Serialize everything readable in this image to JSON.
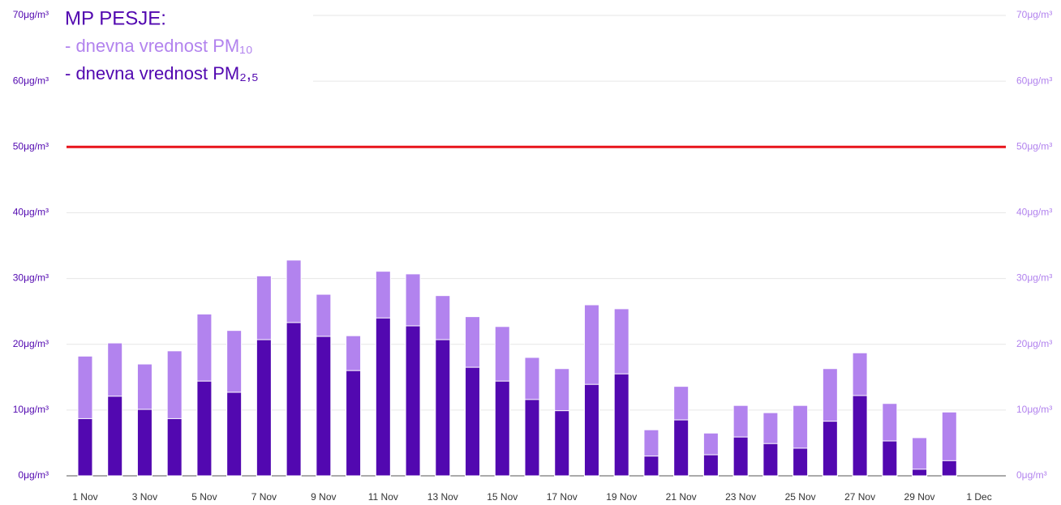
{
  "chart_data": {
    "type": "bar",
    "overlap": true,
    "title": "MP PESJE:",
    "categories": [
      "1 Nov",
      null,
      "3 Nov",
      null,
      "5 Nov",
      null,
      "7 Nov",
      null,
      "9 Nov",
      null,
      "11 Nov",
      null,
      "13 Nov",
      null,
      "15 Nov",
      null,
      "17 Nov",
      null,
      "19 Nov",
      null,
      "21 Nov",
      null,
      "23 Nov",
      null,
      "25 Nov",
      null,
      "27 Nov",
      null,
      "29 Nov",
      null,
      "1 Dec"
    ],
    "series": [
      {
        "name": "- dnevna vrednost PM₁₀",
        "color": "#b283ee",
        "values": [
          18.2,
          20.2,
          17.0,
          19.0,
          24.6,
          22.1,
          30.4,
          32.8,
          27.6,
          21.3,
          31.1,
          30.7,
          27.4,
          24.2,
          22.7,
          18.0,
          16.3,
          26.0,
          25.4,
          7.0,
          13.6,
          6.5,
          10.7,
          9.6,
          10.7,
          16.3,
          18.7,
          11.0,
          5.8,
          9.7,
          null
        ]
      },
      {
        "name": "- dnevna vrednost PM₂,₅",
        "color": "#5208b0",
        "values": [
          8.7,
          12.1,
          10.1,
          8.7,
          14.4,
          12.7,
          20.7,
          23.3,
          21.2,
          16.0,
          24.0,
          22.8,
          20.7,
          16.5,
          14.4,
          11.6,
          9.9,
          13.9,
          15.5,
          3.0,
          8.5,
          3.2,
          5.9,
          4.9,
          4.2,
          8.3,
          12.2,
          5.3,
          1.0,
          2.3,
          null
        ]
      }
    ],
    "ylim": [
      0,
      70
    ],
    "yticks": [
      {
        "value": 0,
        "label": "0μg/m³"
      },
      {
        "value": 10,
        "label": "10μg/m³"
      },
      {
        "value": 20,
        "label": "20μg/m³"
      },
      {
        "value": 30,
        "label": "30μg/m³"
      },
      {
        "value": 40,
        "label": "40μg/m³"
      },
      {
        "value": 50,
        "label": "50μg/m³"
      },
      {
        "value": 60,
        "label": "60μg/m³"
      },
      {
        "value": 70,
        "label": "70μg/m³"
      }
    ],
    "y2lim": [
      0,
      70
    ],
    "y2ticks": [
      {
        "value": 0,
        "label": "0μg/m³"
      },
      {
        "value": 10,
        "label": "10μg/m³"
      },
      {
        "value": 20,
        "label": "20μg/m³"
      },
      {
        "value": 30,
        "label": "30μg/m³"
      },
      {
        "value": 40,
        "label": "40μg/m³"
      },
      {
        "value": 50,
        "label": "50μg/m³"
      },
      {
        "value": 60,
        "label": "60μg/m³"
      },
      {
        "value": 70,
        "label": "70μg/m³"
      }
    ],
    "reference_line": {
      "value": 50,
      "color": "#e8141b"
    },
    "grid": true
  }
}
